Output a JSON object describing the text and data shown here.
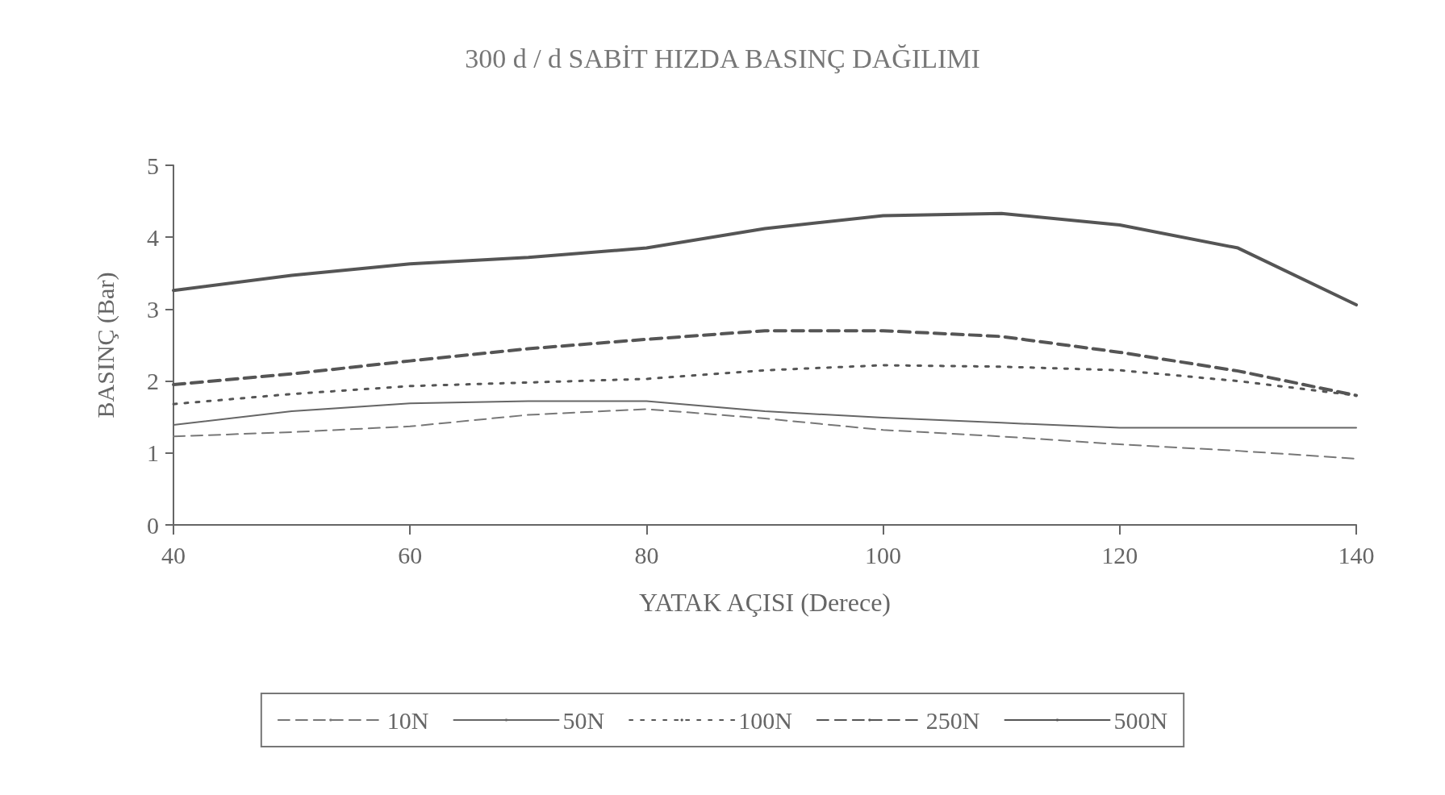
{
  "chart_data": {
    "type": "line",
    "title": "300 d / d SABİT HIZDA BASINÇ DAĞILIMI",
    "xlabel": "YATAK AÇISI (Derece)",
    "ylabel": "BASINÇ (Bar)",
    "x": [
      40,
      50,
      60,
      70,
      80,
      90,
      100,
      110,
      120,
      130,
      140
    ],
    "series": [
      {
        "name": "10N",
        "color": "#777777",
        "line_style": "dashed",
        "values": [
          1.23,
          1.29,
          1.37,
          1.53,
          1.61,
          1.48,
          1.32,
          1.23,
          1.12,
          1.03,
          0.92
        ]
      },
      {
        "name": "50N",
        "color": "#666666",
        "line_style": "solid",
        "values": [
          1.39,
          1.58,
          1.69,
          1.72,
          1.72,
          1.58,
          1.49,
          1.42,
          1.35,
          1.35,
          1.35
        ]
      },
      {
        "name": "100N",
        "color": "#555555",
        "line_style": "dotted",
        "values": [
          1.68,
          1.82,
          1.93,
          1.98,
          2.03,
          2.15,
          2.22,
          2.2,
          2.15,
          2,
          1.8
        ]
      },
      {
        "name": "250N",
        "color": "#555555",
        "line_style": "dashed",
        "values": [
          1.95,
          2.1,
          2.28,
          2.45,
          2.58,
          2.7,
          2.7,
          2.62,
          2.4,
          2.14,
          1.8
        ]
      },
      {
        "name": "500N",
        "color": "#555555",
        "line_style": "solid",
        "values": [
          3.26,
          3.47,
          3.63,
          3.72,
          3.85,
          4.12,
          4.3,
          4.33,
          4.17,
          3.85,
          3.06
        ]
      }
    ],
    "xlim": [
      40,
      140
    ],
    "xticks": [
      40,
      60,
      80,
      100,
      120,
      140
    ],
    "ylim": [
      0,
      5
    ],
    "yticks": [
      0,
      1,
      2,
      3,
      4,
      5
    ],
    "grid": false,
    "legend": "bottom",
    "marker": "none"
  }
}
